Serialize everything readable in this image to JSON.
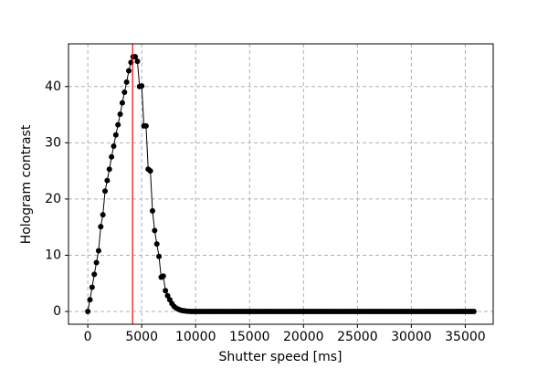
{
  "chart_data": {
    "type": "line",
    "x_label": "Shutter speed [ms]",
    "y_label": "Hologram contrast",
    "x": [
      0,
      200,
      400,
      600,
      800,
      1000,
      1200,
      1400,
      1600,
      1800,
      2000,
      2200,
      2400,
      2600,
      2800,
      3000,
      3200,
      3400,
      3600,
      3800,
      4000,
      4200,
      4400,
      4600,
      4800,
      5000,
      5200,
      5400,
      5600,
      5800,
      6000,
      6200,
      6400,
      6600,
      6800,
      7000,
      7200,
      7400,
      7600,
      7800,
      8000,
      8200,
      8400,
      8600,
      8800,
      9000,
      9200,
      9400,
      9600,
      9800,
      10000,
      10200,
      10400,
      10600,
      10800,
      11000,
      11200,
      11400,
      11600,
      11800,
      12000,
      12200,
      12400,
      12600,
      12800,
      13000,
      13200,
      13400,
      13600,
      13800,
      14000,
      14200,
      14400,
      14600,
      14800,
      15000,
      15200,
      15400,
      15600,
      15800,
      16000,
      16200,
      16400,
      16600,
      16800,
      17000,
      17200,
      17400,
      17600,
      17800,
      18000,
      18200,
      18400,
      18600,
      18800,
      19000,
      19200,
      19400,
      19600,
      19800,
      20000,
      20200,
      20400,
      20600,
      20800,
      21000,
      21200,
      21400,
      21600,
      21800,
      22000,
      22200,
      22400,
      22600,
      22800,
      23000,
      23200,
      23400,
      23600,
      23800,
      24000,
      24200,
      24400,
      24600,
      24800,
      25000,
      25200,
      25400,
      25600,
      25800,
      26000,
      26200,
      26400,
      26600,
      26800,
      27000,
      27200,
      27400,
      27600,
      27800,
      28000,
      28200,
      28400,
      28600,
      28800,
      29000,
      29200,
      29400,
      29600,
      29800,
      30000,
      30200,
      30400,
      30600,
      30800,
      31000,
      31200,
      31400,
      31600,
      31800,
      32000,
      32200,
      32400,
      32600,
      32800,
      33000,
      33200,
      33400,
      33600,
      33800,
      34000,
      34200,
      34400,
      34600,
      34800,
      35000,
      35200,
      35400,
      35600,
      35800
    ],
    "values": [
      0,
      2.1,
      4.3,
      6.6,
      8.7,
      10.8,
      15.1,
      17.2,
      21.4,
      23.3,
      25.3,
      27.5,
      29.4,
      31.4,
      33.2,
      35.1,
      37.1,
      39.0,
      40.8,
      42.8,
      44.3,
      45.3,
      45.3,
      44.5,
      40.0,
      40.1,
      33.0,
      33.0,
      25.3,
      25.0,
      17.9,
      14.4,
      12.0,
      9.8,
      6.1,
      6.3,
      3.7,
      2.8,
      2.1,
      1.4,
      0.9,
      0.6,
      0.4,
      0.25,
      0.15,
      0.1,
      0.05,
      0.02,
      0,
      0,
      0,
      0,
      0,
      0,
      0,
      0,
      0,
      0,
      0,
      0,
      0,
      0,
      0,
      0,
      0,
      0,
      0,
      0,
      0,
      0,
      0,
      0,
      0,
      0,
      0,
      0,
      0,
      0,
      0,
      0,
      0,
      0,
      0,
      0,
      0,
      0,
      0,
      0,
      0,
      0,
      0,
      0,
      0,
      0,
      0,
      0,
      0,
      0,
      0,
      0,
      0,
      0,
      0,
      0,
      0,
      0,
      0,
      0,
      0,
      0,
      0,
      0,
      0,
      0,
      0,
      0,
      0,
      0,
      0,
      0,
      0,
      0,
      0,
      0,
      0,
      0,
      0,
      0,
      0,
      0,
      0,
      0,
      0,
      0,
      0,
      0,
      0,
      0,
      0,
      0,
      0,
      0,
      0,
      0,
      0,
      0,
      0,
      0,
      0,
      0,
      0,
      0,
      0,
      0,
      0,
      0,
      0,
      0,
      0,
      0,
      0,
      0,
      0,
      0,
      0,
      0,
      0,
      0,
      0,
      0,
      0,
      0,
      0,
      0,
      0,
      0,
      0,
      0,
      0,
      0
    ],
    "color": "#000000",
    "vline": {
      "x": 4150,
      "color": "#ff0000"
    },
    "xlim": [
      -1790,
      37590
    ],
    "ylim": [
      -2.27,
      47.6
    ],
    "xticks": [
      0,
      5000,
      10000,
      15000,
      20000,
      25000,
      30000,
      35000
    ],
    "yticks": [
      0,
      10,
      20,
      30,
      40
    ],
    "grid": true
  }
}
